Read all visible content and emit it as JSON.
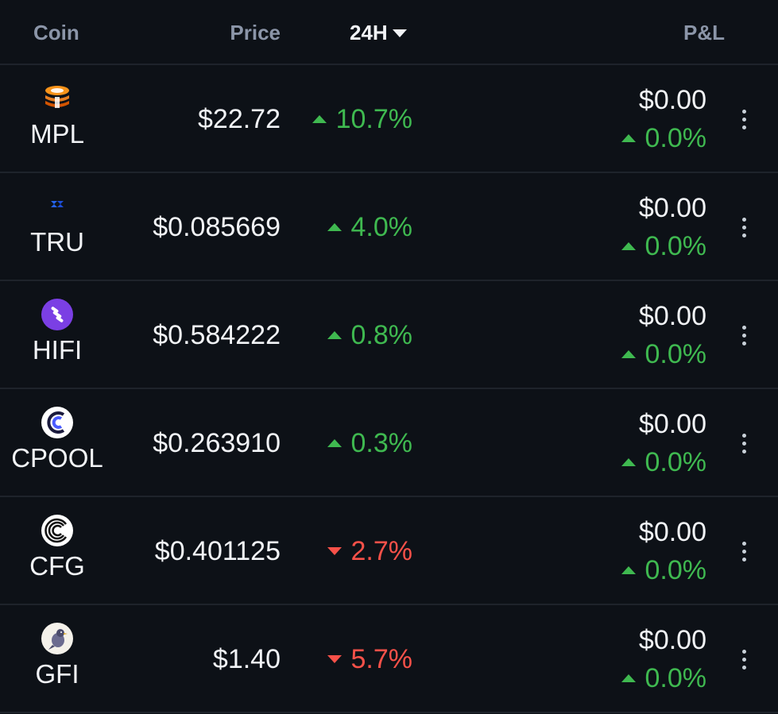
{
  "header": {
    "coin": "Coin",
    "price": "Price",
    "change": "24H",
    "pl": "P&L"
  },
  "rows": [
    {
      "symbol": "MPL",
      "icon": "maple-stack-icon",
      "price": "$22.72",
      "change": "10.7%",
      "direction": "up",
      "pl_value": "$0.00",
      "pl_change": "0.0%"
    },
    {
      "symbol": "TRU",
      "icon": "truefi-icon",
      "price": "$0.085669",
      "change": "4.0%",
      "direction": "up",
      "pl_value": "$0.00",
      "pl_change": "0.0%"
    },
    {
      "symbol": "HIFI",
      "icon": "hifi-icon",
      "price": "$0.584222",
      "change": "0.8%",
      "direction": "up",
      "pl_value": "$0.00",
      "pl_change": "0.0%"
    },
    {
      "symbol": "CPOOL",
      "icon": "clearpool-icon",
      "price": "$0.263910",
      "change": "0.3%",
      "direction": "up",
      "pl_value": "$0.00",
      "pl_change": "0.0%"
    },
    {
      "symbol": "CFG",
      "icon": "centrifuge-icon",
      "price": "$0.401125",
      "change": "2.7%",
      "direction": "down",
      "pl_value": "$0.00",
      "pl_change": "0.0%"
    },
    {
      "symbol": "GFI",
      "icon": "goldfinch-icon",
      "price": "$1.40",
      "change": "5.7%",
      "direction": "down",
      "pl_value": "$0.00",
      "pl_change": "0.0%"
    }
  ],
  "colors": {
    "background": "#0d1117",
    "up": "#3fb950",
    "down": "#f85149",
    "header_text": "#8b95a8",
    "text": "#f2f4f7"
  }
}
